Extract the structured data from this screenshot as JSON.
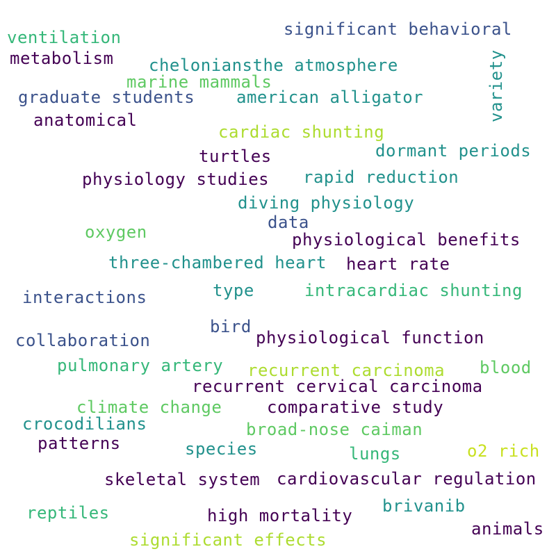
{
  "palette": {
    "dark_purple": "#440154",
    "indigo": "#3b528b",
    "teal": "#21918c",
    "green": "#35b779",
    "light_green": "#5ec962",
    "yellow_green": "#addc30",
    "lime": "#c8e020"
  },
  "words": [
    {
      "text": "ventilation"
    },
    {
      "text": "significant behavioral"
    },
    {
      "text": "metabolism"
    },
    {
      "text": "cheloniansthe atmosphere"
    },
    {
      "text": "marine mammals"
    },
    {
      "text": "variety"
    },
    {
      "text": "graduate students"
    },
    {
      "text": "american alligator"
    },
    {
      "text": "anatomical"
    },
    {
      "text": "cardiac shunting"
    },
    {
      "text": "turtles"
    },
    {
      "text": "dormant periods"
    },
    {
      "text": "physiology studies"
    },
    {
      "text": "rapid reduction"
    },
    {
      "text": "diving physiology"
    },
    {
      "text": "data"
    },
    {
      "text": "oxygen"
    },
    {
      "text": "physiological benefits"
    },
    {
      "text": "three-chambered heart"
    },
    {
      "text": "heart rate"
    },
    {
      "text": "type"
    },
    {
      "text": "intracardiac shunting"
    },
    {
      "text": "interactions"
    },
    {
      "text": "bird"
    },
    {
      "text": "physiological function"
    },
    {
      "text": "collaboration"
    },
    {
      "text": "pulmonary artery"
    },
    {
      "text": "recurrent carcinoma"
    },
    {
      "text": "blood"
    },
    {
      "text": "recurrent cervical carcinoma"
    },
    {
      "text": "climate change"
    },
    {
      "text": "comparative study"
    },
    {
      "text": "crocodilians"
    },
    {
      "text": "broad-nose caiman"
    },
    {
      "text": "patterns"
    },
    {
      "text": "species"
    },
    {
      "text": "lungs"
    },
    {
      "text": "o2 rich"
    },
    {
      "text": "skeletal system"
    },
    {
      "text": "cardiovascular regulation"
    },
    {
      "text": "reptiles"
    },
    {
      "text": "brivanib"
    },
    {
      "text": "high mortality"
    },
    {
      "text": "animals"
    },
    {
      "text": "significant effects"
    }
  ]
}
